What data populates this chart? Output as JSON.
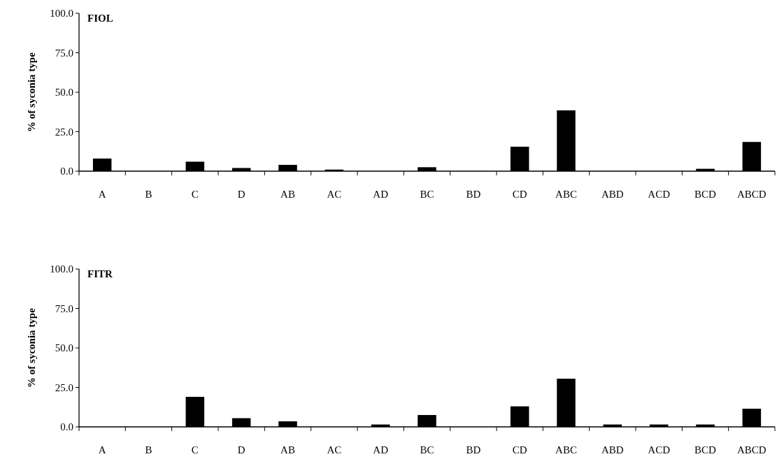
{
  "chart_data": [
    {
      "type": "bar",
      "title": "FIOL",
      "ylabel": "% of syconia type",
      "categories": [
        "A",
        "B",
        "C",
        "D",
        "AB",
        "AC",
        "AD",
        "BC",
        "BD",
        "CD",
        "ABC",
        "ABD",
        "ACD",
        "BCD",
        "ABCD"
      ],
      "values": [
        8,
        0,
        6,
        2,
        4,
        1,
        0,
        2.5,
        0,
        15.5,
        38.5,
        0,
        0,
        1.5,
        18.5
      ],
      "color": "#000000",
      "ylim": [
        0,
        100
      ],
      "yticks": [
        {
          "value": 0,
          "label": "0.0"
        },
        {
          "value": 25,
          "label": "25.0"
        },
        {
          "value": 50,
          "label": "50.0"
        },
        {
          "value": 75,
          "label": "75.0"
        },
        {
          "value": 100,
          "label": "100.0"
        }
      ],
      "grid": false
    },
    {
      "type": "bar",
      "title": "FITR",
      "ylabel": "% of syconia type",
      "categories": [
        "A",
        "B",
        "C",
        "D",
        "AB",
        "AC",
        "AD",
        "BC",
        "BD",
        "CD",
        "ABC",
        "ABD",
        "ACD",
        "BCD",
        "ABCD"
      ],
      "values": [
        0,
        0,
        19,
        5.5,
        3.5,
        0,
        1.5,
        7.5,
        0,
        13,
        30.5,
        1.5,
        1.5,
        1.5,
        11.5
      ],
      "color": "#000000",
      "ylim": [
        0,
        100
      ],
      "yticks": [
        {
          "value": 0,
          "label": "0.0"
        },
        {
          "value": 25,
          "label": "25.0"
        },
        {
          "value": 50,
          "label": "50.0"
        },
        {
          "value": 75,
          "label": "75.0"
        },
        {
          "value": 100,
          "label": "100.0"
        }
      ],
      "grid": false
    }
  ]
}
